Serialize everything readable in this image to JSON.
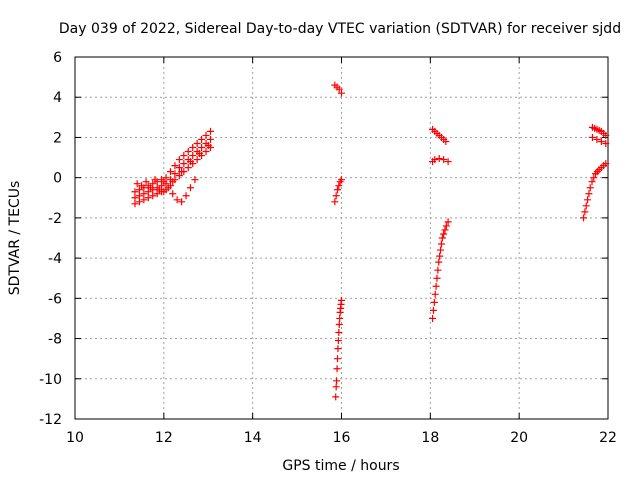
{
  "chart_data": {
    "type": "scatter",
    "title": "Day 039 of 2022, Sidereal Day-to-day VTEC variation (SDTVAR) for receiver sjdd",
    "xlabel": "GPS time / hours",
    "ylabel": "SDTVAR / TECUs",
    "xlim": [
      10,
      22
    ],
    "ylim": [
      -12,
      6
    ],
    "xticks": [
      10,
      12,
      14,
      16,
      18,
      20,
      22
    ],
    "yticks": [
      -12,
      -10,
      -8,
      -6,
      -4,
      -2,
      0,
      2,
      4,
      6
    ],
    "grid": true,
    "marker": "plus",
    "color": "#ff0000",
    "series": [
      {
        "x": [
          11.35,
          11.45,
          11.55,
          11.65,
          11.75,
          11.85,
          11.95,
          12.05,
          12.15,
          12.25,
          12.35,
          12.45,
          12.55,
          12.65,
          12.75,
          12.85,
          12.95,
          13.05,
          11.35,
          11.45,
          11.55,
          11.65,
          11.75,
          11.85,
          11.95,
          12.05,
          12.15,
          12.25,
          12.35,
          12.45,
          12.55,
          12.65,
          12.75,
          12.85,
          12.95,
          13.05,
          11.35,
          11.45,
          11.55,
          11.65,
          11.75,
          11.85,
          11.95,
          12.05,
          12.15,
          12.25,
          12.35,
          12.45,
          12.55,
          12.65,
          12.75,
          12.85,
          12.95,
          13.05,
          11.4,
          11.6,
          11.8,
          12.0,
          12.1,
          12.2,
          12.3,
          12.4,
          12.5,
          12.6,
          12.7,
          11.5,
          11.7,
          11.9,
          12.0,
          12.2,
          12.4,
          12.6,
          12.8,
          13.0
        ],
        "y": [
          -0.7,
          -0.6,
          -0.5,
          -0.4,
          -0.3,
          -0.2,
          -0.1,
          0.0,
          0.3,
          0.6,
          0.9,
          1.1,
          1.3,
          1.5,
          1.7,
          1.9,
          2.1,
          2.3,
          -1.0,
          -0.9,
          -0.8,
          -0.7,
          -0.6,
          -0.5,
          -0.4,
          -0.3,
          -0.1,
          0.2,
          0.5,
          0.7,
          0.9,
          1.1,
          1.3,
          1.5,
          1.7,
          1.9,
          -1.3,
          -1.2,
          -1.1,
          -1.0,
          -0.9,
          -0.8,
          -0.7,
          -0.6,
          -0.4,
          -0.1,
          0.1,
          0.3,
          0.5,
          0.7,
          0.9,
          1.1,
          1.3,
          1.5,
          -0.3,
          -0.2,
          -0.1,
          -0.2,
          -0.5,
          -0.8,
          -1.1,
          -1.2,
          -0.9,
          -0.5,
          -0.1,
          -0.4,
          -0.5,
          -0.6,
          -0.7,
          -0.2,
          0.3,
          0.8,
          1.2,
          1.6
        ]
      },
      {
        "x": [
          15.85,
          15.9,
          15.95,
          16.0,
          15.85,
          15.88,
          15.91,
          15.94,
          15.97,
          16.0,
          15.87,
          15.88,
          15.89,
          15.9,
          15.91,
          15.92,
          15.93,
          15.94,
          15.95,
          15.96,
          15.97,
          15.98,
          15.99,
          16.0
        ],
        "y": [
          4.6,
          4.5,
          4.4,
          4.2,
          -1.2,
          -0.9,
          -0.6,
          -0.4,
          -0.2,
          -0.1,
          -10.9,
          -10.4,
          -10.1,
          -9.5,
          -9.0,
          -8.5,
          -8.1,
          -7.7,
          -7.3,
          -7.0,
          -6.7,
          -6.5,
          -6.3,
          -6.1
        ]
      },
      {
        "x": [
          18.05,
          18.1,
          18.15,
          18.2,
          18.25,
          18.3,
          18.35,
          18.05,
          18.1,
          18.2,
          18.3,
          18.4,
          18.05,
          18.07,
          18.09,
          18.11,
          18.13,
          18.15,
          18.17,
          18.19,
          18.21,
          18.23,
          18.25,
          18.27,
          18.3,
          18.33,
          18.36,
          18.4
        ],
        "y": [
          2.4,
          2.3,
          2.2,
          2.1,
          2.0,
          1.9,
          1.8,
          0.8,
          0.9,
          0.95,
          0.9,
          0.8,
          -7.0,
          -6.6,
          -6.2,
          -5.8,
          -5.4,
          -5.0,
          -4.6,
          -4.2,
          -3.9,
          -3.6,
          -3.3,
          -3.0,
          -2.8,
          -2.6,
          -2.4,
          -2.2
        ]
      },
      {
        "x": [
          21.65,
          21.7,
          21.75,
          21.8,
          21.85,
          21.9,
          21.95,
          21.65,
          21.75,
          21.85,
          21.95,
          21.45,
          21.48,
          21.51,
          21.54,
          21.57,
          21.6,
          21.64,
          21.68,
          21.72,
          21.76,
          21.8,
          21.85,
          21.9,
          21.95
        ],
        "y": [
          2.5,
          2.45,
          2.4,
          2.35,
          2.3,
          2.2,
          2.1,
          2.0,
          1.9,
          1.8,
          1.7,
          -2.0,
          -1.7,
          -1.4,
          -1.1,
          -0.8,
          -0.5,
          -0.2,
          0.0,
          0.2,
          0.3,
          0.4,
          0.5,
          0.6,
          0.7
        ]
      }
    ]
  }
}
